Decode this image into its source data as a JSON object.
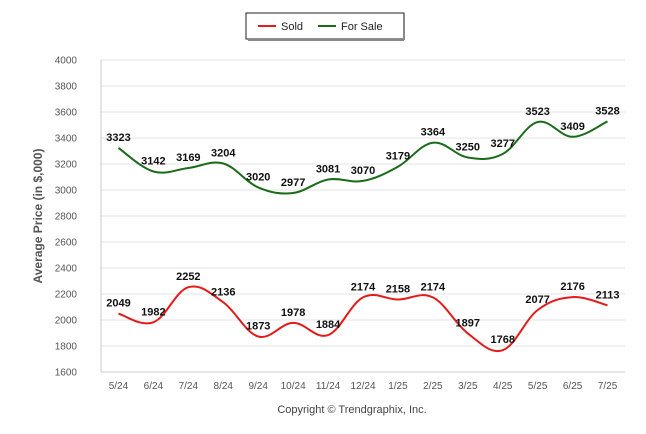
{
  "chart_data": {
    "type": "line",
    "title": "",
    "xlabel": "",
    "ylabel": "Average Price (in $,000)",
    "ylim": [
      1600,
      4000
    ],
    "yticks": [
      1600,
      1800,
      2000,
      2200,
      2400,
      2600,
      2800,
      3000,
      3200,
      3400,
      3600,
      3800,
      4000
    ],
    "grid": true,
    "legend_position": "top-center",
    "categories": [
      "5/24",
      "6/24",
      "7/24",
      "8/24",
      "9/24",
      "10/24",
      "11/24",
      "12/24",
      "1/25",
      "2/25",
      "3/25",
      "4/25",
      "5/25",
      "6/25",
      "7/25"
    ],
    "series": [
      {
        "name": "Sold",
        "color": "#e31b1b",
        "values": [
          2049,
          1982,
          2252,
          2136,
          1873,
          1978,
          1884,
          2174,
          2158,
          2174,
          1897,
          1768,
          2077,
          2176,
          2113
        ]
      },
      {
        "name": "For Sale",
        "color": "#1a6b1a",
        "values": [
          3323,
          3142,
          3169,
          3204,
          3020,
          2977,
          3081,
          3070,
          3179,
          3364,
          3250,
          3277,
          3523,
          3409,
          3528
        ]
      }
    ],
    "footer": "Copyright © Trendgraphix, Inc."
  }
}
